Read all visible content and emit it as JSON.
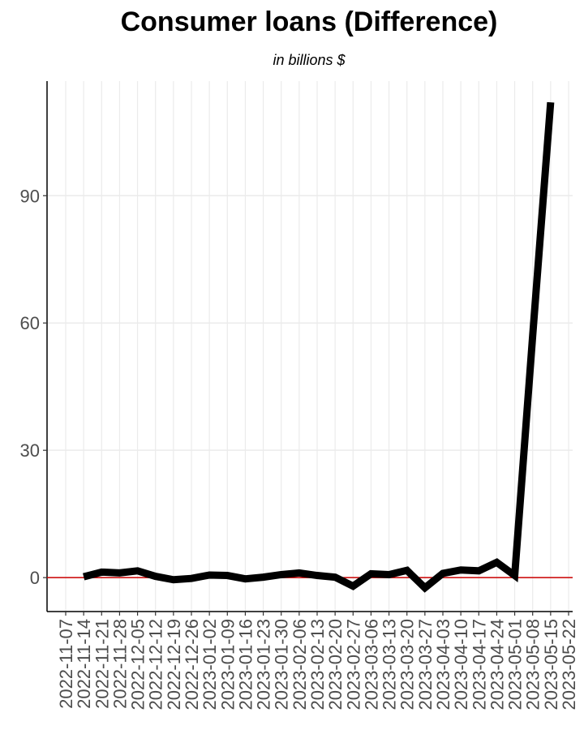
{
  "chart_data": {
    "type": "line",
    "title": "Consumer loans (Difference)",
    "subtitle": "in billions $",
    "xlabel": "",
    "ylabel": "",
    "x": [
      "2022-11-14",
      "2022-11-21",
      "2022-11-28",
      "2022-12-05",
      "2022-12-12",
      "2022-12-19",
      "2022-12-26",
      "2023-01-02",
      "2023-01-09",
      "2023-01-16",
      "2023-01-23",
      "2023-01-30",
      "2023-02-06",
      "2023-02-13",
      "2023-02-20",
      "2023-02-27",
      "2023-03-06",
      "2023-03-13",
      "2023-03-20",
      "2023-03-27",
      "2023-04-03",
      "2023-04-10",
      "2023-04-17",
      "2023-04-24",
      "2023-05-01",
      "2023-05-08",
      "2023-05-15"
    ],
    "x_tick_labels": [
      "2022-11-07",
      "2022-11-14",
      "2022-11-21",
      "2022-11-28",
      "2022-12-05",
      "2022-12-12",
      "2022-12-19",
      "2022-12-26",
      "2023-01-02",
      "2023-01-09",
      "2023-01-16",
      "2023-01-23",
      "2023-01-30",
      "2023-02-06",
      "2023-02-13",
      "2023-02-20",
      "2023-02-27",
      "2023-03-06",
      "2023-03-13",
      "2023-03-20",
      "2023-03-27",
      "2023-04-03",
      "2023-04-10",
      "2023-04-17",
      "2023-04-24",
      "2023-05-01",
      "2023-05-08",
      "2023-05-15",
      "2023-05-22"
    ],
    "series": [
      {
        "values": [
          0.2,
          1.3,
          1.1,
          1.6,
          0.3,
          -0.5,
          -0.2,
          0.6,
          0.5,
          -0.3,
          0.1,
          0.7,
          1.1,
          0.5,
          0.1,
          -2.0,
          0.9,
          0.7,
          1.7,
          -2.4,
          1.0,
          1.8,
          1.6,
          3.6,
          0.5,
          57,
          112
        ]
      }
    ],
    "y_ticks": [
      0,
      30,
      60,
      90
    ],
    "ylim": [
      -8,
      117
    ],
    "xlim": [
      "2022-11-07",
      "2023-05-22"
    ],
    "reference_line": {
      "y": 0,
      "color": "#cc0000"
    },
    "line_color": "#000000",
    "grid": true
  }
}
